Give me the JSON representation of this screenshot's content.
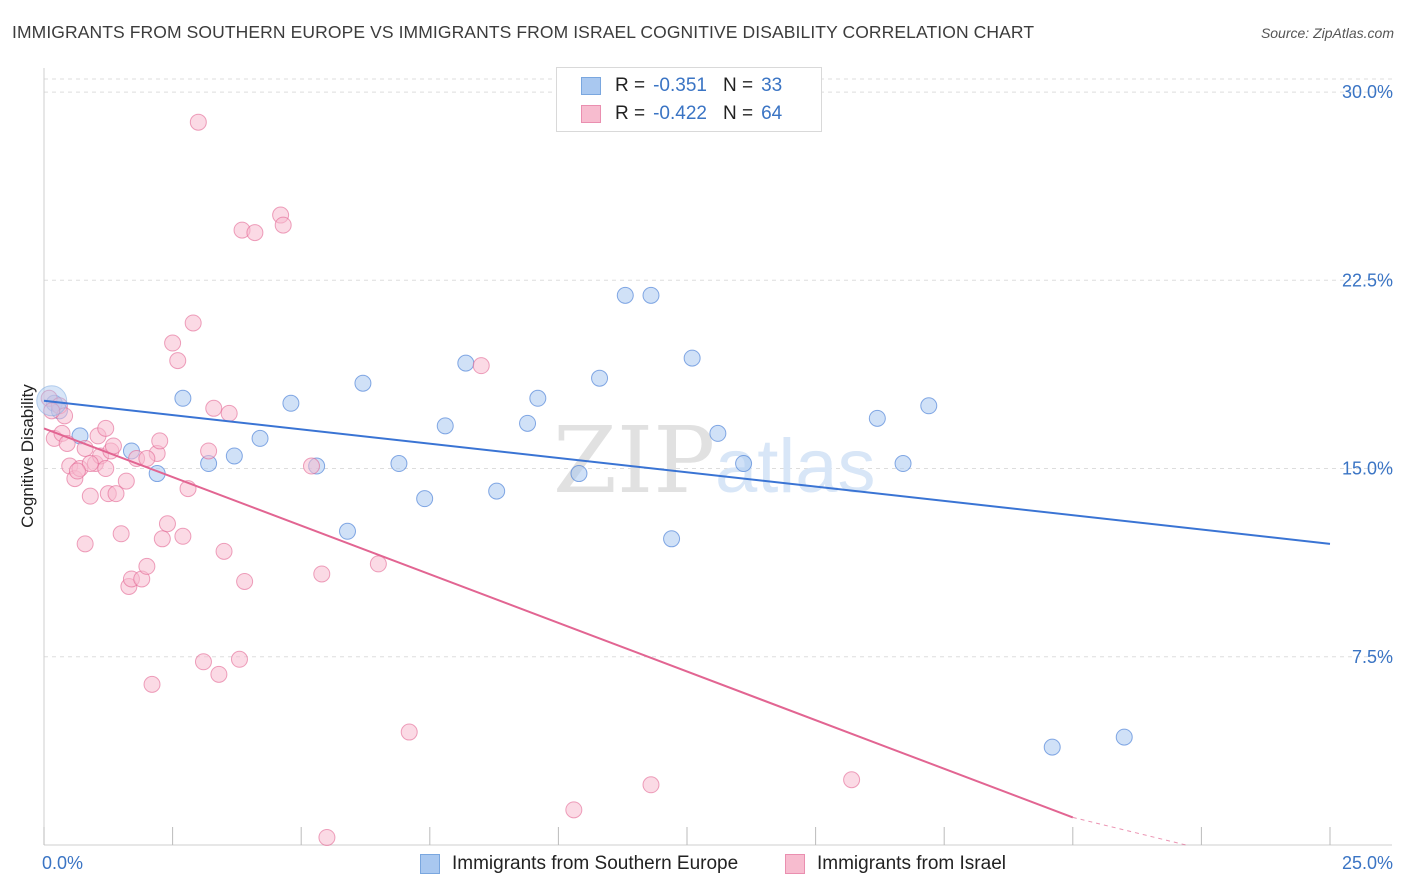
{
  "title": "IMMIGRANTS FROM SOUTHERN EUROPE VS IMMIGRANTS FROM ISRAEL COGNITIVE DISABILITY CORRELATION CHART",
  "source": "Source: ZipAtlas.com",
  "legend": {
    "r_label": "R =",
    "n_label": "N =",
    "rows": [
      {
        "r": "-0.351",
        "n": "33",
        "color": "#a9c8f0",
        "border": "#7aa7df"
      },
      {
        "r": "-0.422",
        "n": "64",
        "color": "#f7bccf",
        "border": "#ea8fb0"
      }
    ]
  },
  "bottom_legend": [
    {
      "label": "Immigrants from Southern Europe",
      "color": "#a9c8f0",
      "border": "#7aa7df"
    },
    {
      "label": "Immigrants from Israel",
      "color": "#f7bccf",
      "border": "#ea8fb0"
    }
  ],
  "watermark": {
    "zip": "ZIP",
    "atlas": "atlas"
  },
  "chart_data": {
    "type": "scatter",
    "title": "IMMIGRANTS FROM SOUTHERN EUROPE VS IMMIGRANTS FROM ISRAEL COGNITIVE DISABILITY CORRELATION CHART",
    "xlabel": "",
    "ylabel": "Cognitive Disability",
    "xlim": [
      0,
      25
    ],
    "ylim": [
      0,
      30.8
    ],
    "x_tick_labels": [
      "0.0%",
      "25.0%"
    ],
    "y_ticks": [
      7.5,
      15.0,
      22.5,
      30.0
    ],
    "y_tick_labels": [
      "7.5%",
      "15.0%",
      "22.5%",
      "30.0%"
    ],
    "grid": true,
    "series": [
      {
        "name": "Immigrants from Southern Europe",
        "color": "#3a74d4",
        "fill": "#a9c8f0",
        "trend": {
          "x0": 0,
          "y0": 17.7,
          "x1": 25,
          "y1": 12.0
        },
        "points": [
          [
            0.2,
            17.6
          ],
          [
            0.3,
            17.3
          ],
          [
            0.7,
            16.3
          ],
          [
            1.7,
            15.7
          ],
          [
            2.2,
            14.8
          ],
          [
            2.7,
            17.8
          ],
          [
            3.2,
            15.2
          ],
          [
            3.7,
            15.5
          ],
          [
            4.2,
            16.2
          ],
          [
            4.8,
            17.6
          ],
          [
            5.3,
            15.1
          ],
          [
            5.9,
            12.5
          ],
          [
            6.2,
            18.4
          ],
          [
            6.9,
            15.2
          ],
          [
            7.4,
            13.8
          ],
          [
            7.8,
            16.7
          ],
          [
            8.2,
            19.2
          ],
          [
            8.8,
            14.1
          ],
          [
            9.4,
            16.8
          ],
          [
            9.6,
            17.8
          ],
          [
            10.4,
            14.8
          ],
          [
            10.8,
            18.6
          ],
          [
            11.3,
            21.9
          ],
          [
            11.8,
            21.9
          ],
          [
            12.2,
            12.2
          ],
          [
            12.6,
            19.4
          ],
          [
            13.1,
            16.4
          ],
          [
            13.6,
            15.2
          ],
          [
            16.2,
            17.0
          ],
          [
            16.7,
            15.2
          ],
          [
            17.2,
            17.5
          ],
          [
            19.6,
            3.9
          ],
          [
            21.0,
            4.3
          ]
        ]
      },
      {
        "name": "Immigrants from Israel",
        "color": "#e26592",
        "fill": "#f7bccf",
        "trend": {
          "x0": 0,
          "y0": 16.6,
          "x1": 20.0,
          "y1": 1.1
        },
        "trend_dashed_to": {
          "x": 25,
          "y": -2.8
        },
        "points": [
          [
            0.1,
            17.8
          ],
          [
            0.2,
            16.2
          ],
          [
            0.3,
            17.5
          ],
          [
            0.4,
            17.1
          ],
          [
            0.5,
            15.1
          ],
          [
            0.6,
            14.6
          ],
          [
            0.7,
            15.0
          ],
          [
            0.8,
            15.8
          ],
          [
            0.9,
            13.9
          ],
          [
            1.0,
            15.2
          ],
          [
            1.1,
            15.5
          ],
          [
            1.2,
            15.0
          ],
          [
            1.25,
            14.0
          ],
          [
            1.3,
            15.7
          ],
          [
            1.4,
            14.0
          ],
          [
            1.5,
            12.4
          ],
          [
            1.6,
            14.5
          ],
          [
            1.65,
            10.3
          ],
          [
            1.7,
            10.6
          ],
          [
            1.8,
            15.4
          ],
          [
            1.9,
            10.6
          ],
          [
            2.0,
            11.1
          ],
          [
            2.1,
            6.4
          ],
          [
            2.2,
            15.6
          ],
          [
            2.3,
            12.2
          ],
          [
            2.4,
            12.8
          ],
          [
            2.5,
            20.0
          ],
          [
            2.6,
            19.3
          ],
          [
            2.7,
            12.3
          ],
          [
            2.8,
            14.2
          ],
          [
            2.9,
            20.8
          ],
          [
            3.0,
            28.8
          ],
          [
            3.1,
            7.3
          ],
          [
            3.2,
            15.7
          ],
          [
            3.3,
            17.4
          ],
          [
            3.4,
            6.8
          ],
          [
            3.5,
            11.7
          ],
          [
            3.6,
            17.2
          ],
          [
            3.8,
            7.4
          ],
          [
            3.85,
            24.5
          ],
          [
            3.9,
            10.5
          ],
          [
            4.1,
            24.4
          ],
          [
            4.6,
            25.1
          ],
          [
            4.65,
            24.7
          ],
          [
            5.2,
            15.1
          ],
          [
            5.4,
            10.8
          ],
          [
            5.5,
            0.3
          ],
          [
            6.5,
            11.2
          ],
          [
            7.1,
            4.5
          ],
          [
            8.5,
            19.1
          ],
          [
            10.3,
            1.4
          ],
          [
            11.8,
            2.4
          ],
          [
            15.7,
            2.6
          ],
          [
            0.35,
            16.4
          ],
          [
            0.8,
            12.0
          ],
          [
            1.05,
            16.3
          ],
          [
            1.35,
            15.9
          ],
          [
            0.15,
            17.3
          ],
          [
            0.45,
            16.0
          ],
          [
            2.0,
            15.4
          ],
          [
            1.2,
            16.6
          ],
          [
            0.9,
            15.2
          ],
          [
            2.25,
            16.1
          ],
          [
            0.65,
            14.9
          ]
        ]
      }
    ]
  }
}
